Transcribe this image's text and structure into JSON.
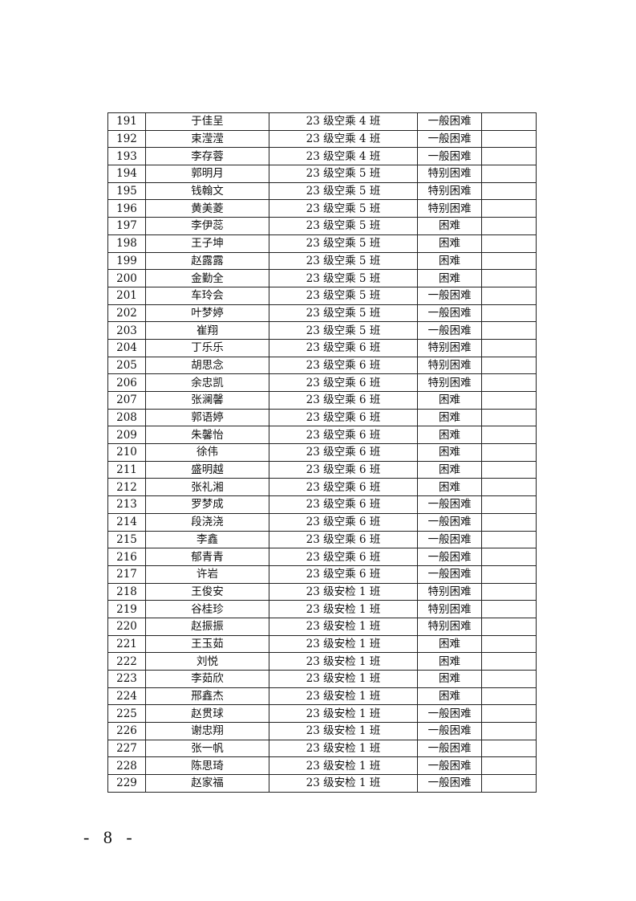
{
  "table": {
    "rows": [
      [
        "191",
        "于佳呈",
        "23 级空乘 4 班",
        "一般困难",
        ""
      ],
      [
        "192",
        "束滢滢",
        "23 级空乘 4 班",
        "一般困难",
        ""
      ],
      [
        "193",
        "李存蓉",
        "23 级空乘 4 班",
        "一般困难",
        ""
      ],
      [
        "194",
        "郭明月",
        "23 级空乘 5 班",
        "特别困难",
        ""
      ],
      [
        "195",
        "钱翰文",
        "23 级空乘 5 班",
        "特别困难",
        ""
      ],
      [
        "196",
        "黄美菱",
        "23 级空乘 5 班",
        "特别困难",
        ""
      ],
      [
        "197",
        "李伊蕊",
        "23 级空乘 5 班",
        "困难",
        ""
      ],
      [
        "198",
        "王子坤",
        "23 级空乘 5 班",
        "困难",
        ""
      ],
      [
        "199",
        "赵露露",
        "23 级空乘 5 班",
        "困难",
        ""
      ],
      [
        "200",
        "金勤全",
        "23 级空乘 5 班",
        "困难",
        ""
      ],
      [
        "201",
        "车玲会",
        "23 级空乘 5 班",
        "一般困难",
        ""
      ],
      [
        "202",
        "叶梦婷",
        "23 级空乘 5 班",
        "一般困难",
        ""
      ],
      [
        "203",
        "崔翔",
        "23 级空乘 5 班",
        "一般困难",
        ""
      ],
      [
        "204",
        "丁乐乐",
        "23 级空乘 6 班",
        "特别困难",
        ""
      ],
      [
        "205",
        "胡思念",
        "23 级空乘 6 班",
        "特别困难",
        ""
      ],
      [
        "206",
        "余忠凯",
        "23 级空乘 6 班",
        "特别困难",
        ""
      ],
      [
        "207",
        "张澜馨",
        "23 级空乘 6 班",
        "困难",
        ""
      ],
      [
        "208",
        "郭语婷",
        "23 级空乘 6 班",
        "困难",
        ""
      ],
      [
        "209",
        "朱馨怡",
        "23 级空乘 6 班",
        "困难",
        ""
      ],
      [
        "210",
        "徐伟",
        "23 级空乘 6 班",
        "困难",
        ""
      ],
      [
        "211",
        "盛明越",
        "23 级空乘 6 班",
        "困难",
        ""
      ],
      [
        "212",
        "张礼湘",
        "23 级空乘 6 班",
        "困难",
        ""
      ],
      [
        "213",
        "罗梦成",
        "23 级空乘 6 班",
        "一般困难",
        ""
      ],
      [
        "214",
        "段浇浇",
        "23 级空乘 6 班",
        "一般困难",
        ""
      ],
      [
        "215",
        "李鑫",
        "23 级空乘 6 班",
        "一般困难",
        ""
      ],
      [
        "216",
        "郁青青",
        "23 级空乘 6 班",
        "一般困难",
        ""
      ],
      [
        "217",
        "许岩",
        "23 级空乘 6 班",
        "一般困难",
        ""
      ],
      [
        "218",
        "王俊安",
        "23 级安检 1 班",
        "特别困难",
        ""
      ],
      [
        "219",
        "谷桂珍",
        "23 级安检 1 班",
        "特别困难",
        ""
      ],
      [
        "220",
        "赵振振",
        "23 级安检 1 班",
        "特别困难",
        ""
      ],
      [
        "221",
        "王玉茹",
        "23 级安检 1 班",
        "困难",
        ""
      ],
      [
        "222",
        "刘悦",
        "23 级安检 1 班",
        "困难",
        ""
      ],
      [
        "223",
        "李茹欣",
        "23 级安检 1 班",
        "困难",
        ""
      ],
      [
        "224",
        "邢鑫杰",
        "23 级安检 1 班",
        "困难",
        ""
      ],
      [
        "225",
        "赵贯球",
        "23 级安检 1 班",
        "一般困难",
        ""
      ],
      [
        "226",
        "谢忠翔",
        "23 级安检 1 班",
        "一般困难",
        ""
      ],
      [
        "227",
        "张一帆",
        "23 级安检 1 班",
        "一般困难",
        ""
      ],
      [
        "228",
        "陈思琦",
        "23 级安检 1 班",
        "一般困难",
        ""
      ],
      [
        "229",
        "赵家福",
        "23 级安检 1 班",
        "一般困难",
        ""
      ]
    ]
  },
  "footer": {
    "page_number": "- 8 -"
  }
}
